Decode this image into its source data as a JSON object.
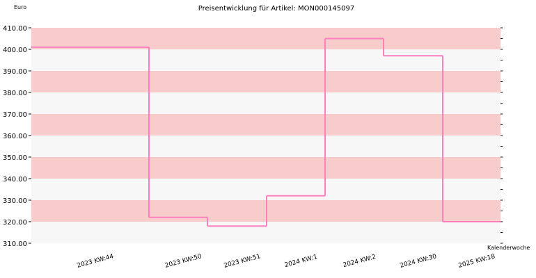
{
  "chart_data": {
    "type": "line",
    "step": true,
    "title": "Preisentwicklung für Artikel: MON000145097",
    "ylabel": "Euro",
    "xlabel": "Kalenderwoche",
    "ylim": [
      310,
      410
    ],
    "yticks": [
      310,
      320,
      330,
      340,
      350,
      360,
      370,
      380,
      390,
      400,
      410
    ],
    "ytick_labels": [
      "310.00",
      "320.00",
      "330.00",
      "340.00",
      "350.00",
      "360.00",
      "370.00",
      "380.00",
      "390.00",
      "400.00",
      "410.00"
    ],
    "categories": [
      "2023 KW:44",
      "2023 KW:50",
      "2023 KW:51",
      "2024 KW:1",
      "2024 KW:2",
      "2024 KW:30",
      "2025 KW:18"
    ],
    "series": [
      {
        "values": [
          401,
          322,
          318,
          332,
          405,
          397,
          320
        ]
      }
    ],
    "band_colors": [
      "#f7f7f7",
      "#f9cccc"
    ],
    "line_color": "#ff80c0",
    "grid": false
  }
}
